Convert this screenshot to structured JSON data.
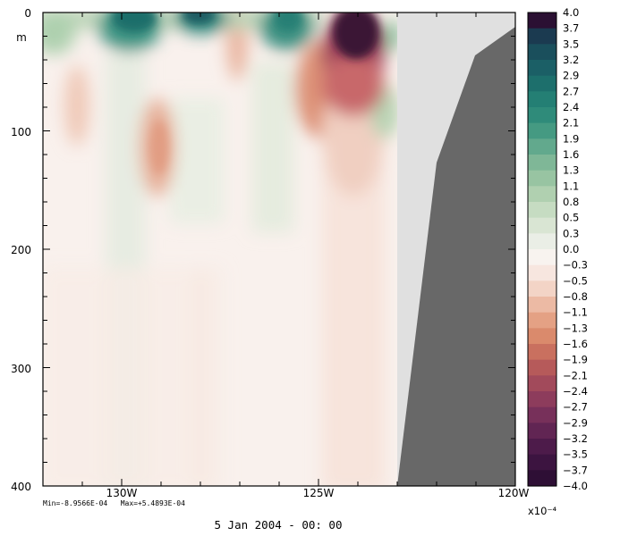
{
  "chart_data": {
    "type": "heatmap",
    "title": "",
    "xlabel": "",
    "ylabel": "m",
    "x_axis": {
      "range": [
        "132W",
        "120W"
      ],
      "ticks": [
        "130W",
        "125W",
        "120W"
      ]
    },
    "y_axis": {
      "range": [
        0,
        400
      ],
      "inverted": true,
      "ticks": [
        "0",
        "100",
        "200",
        "300",
        "400"
      ]
    },
    "colorbar": {
      "levels": [
        "4.0",
        "3.7",
        "3.5",
        "3.2",
        "2.9",
        "2.7",
        "2.4",
        "2.1",
        "1.9",
        "1.6",
        "1.3",
        "1.1",
        "0.8",
        "0.5",
        "0.3",
        "0.0",
        "−0.3",
        "−0.5",
        "−0.8",
        "−1.1",
        "−1.3",
        "−1.6",
        "−1.9",
        "−2.1",
        "−2.4",
        "−2.7",
        "−2.9",
        "−3.2",
        "−3.5",
        "−3.7",
        "−4.0"
      ],
      "scale_label": "x10⁻⁴",
      "colors": [
        "#2b1033",
        "#1b3a50",
        "#1a4f5c",
        "#1b5f66",
        "#1d6f6c",
        "#247f74",
        "#2f8b7a",
        "#459a82",
        "#62a98d",
        "#7fb797",
        "#98c4a2",
        "#b0d0b0",
        "#c6dcc2",
        "#d9e5d3",
        "#eaeee6",
        "#f8f3ef",
        "#f7e6df",
        "#f3d4c6",
        "#ecbaa4",
        "#e4a184",
        "#da8a6c",
        "#c9705f",
        "#b65a5a",
        "#a24a5b",
        "#8d3c5c",
        "#77305a",
        "#612553",
        "#4d1b4a",
        "#3c1440",
        "#2e0f35"
      ]
    },
    "land_mask": {
      "color_light": "#e0e0e0",
      "color_dark": "#686868",
      "edge_x": "123W"
    },
    "stats": "Min=-8.9566E-04   Max=+5.4893E-04",
    "date": "5 Jan 2004 - 00: 00",
    "features": [
      {
        "sign": "positive",
        "peak": "2.9",
        "x_range": [
          "131W",
          "126W"
        ],
        "depth_range": [
          0,
          30
        ]
      },
      {
        "sign": "negative",
        "peak": "-4.0",
        "x_range": [
          "125W",
          "123W"
        ],
        "depth_range": [
          0,
          50
        ]
      },
      {
        "sign": "negative",
        "peak": "-1.3",
        "x_center": "128.6W",
        "depth_range": [
          60,
          180
        ]
      },
      {
        "sign": "negative",
        "peak": "-0.8",
        "x_center": "131.2W",
        "depth_range": [
          50,
          150
        ]
      },
      {
        "sign": "negative",
        "peak": "-0.8",
        "x_center": "127.3W",
        "depth_range": [
          0,
          100
        ]
      }
    ]
  }
}
